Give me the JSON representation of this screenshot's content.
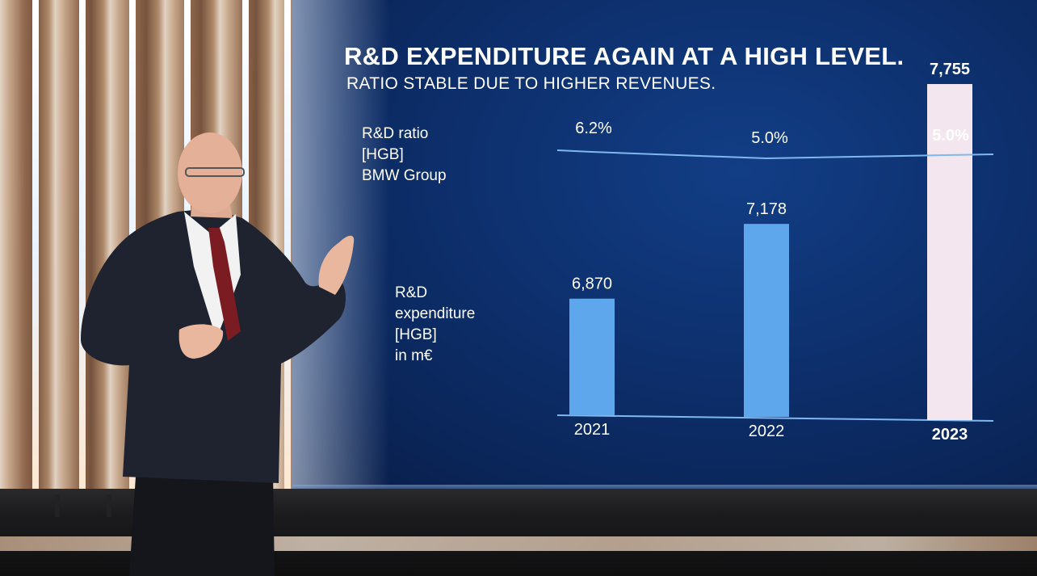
{
  "slide": {
    "title": "R&D EXPENDITURE AGAIN AT A HIGH LEVEL.",
    "subtitle": "RATIO STABLE DUE TO HIGHER REVENUES.",
    "ratio_label": [
      "R&D ratio",
      "[HGB]",
      "BMW Group"
    ],
    "expenditure_label": [
      "R&D",
      "expenditure",
      "[HGB]",
      "in m€"
    ]
  },
  "colors": {
    "bar_blue": "#5ea7ec",
    "bar_highlight": "#f3e6ef",
    "line": "#7fb7f0",
    "text": "#ffffff",
    "background": "#0d2f6c"
  },
  "chart_data": {
    "type": "bar",
    "categories": [
      "2021",
      "2022",
      "2023"
    ],
    "highlight_category": "2023",
    "series": [
      {
        "values": [
          6870,
          7178,
          7755
        ],
        "value_labels": [
          "6,870",
          "7,178",
          "7,755"
        ]
      }
    ],
    "ratio_line": {
      "type": "line",
      "values": [
        6.2,
        5.0,
        5.0
      ],
      "value_labels": [
        "6.2%",
        "5.0%",
        "5.0%"
      ]
    },
    "grid": false
  }
}
